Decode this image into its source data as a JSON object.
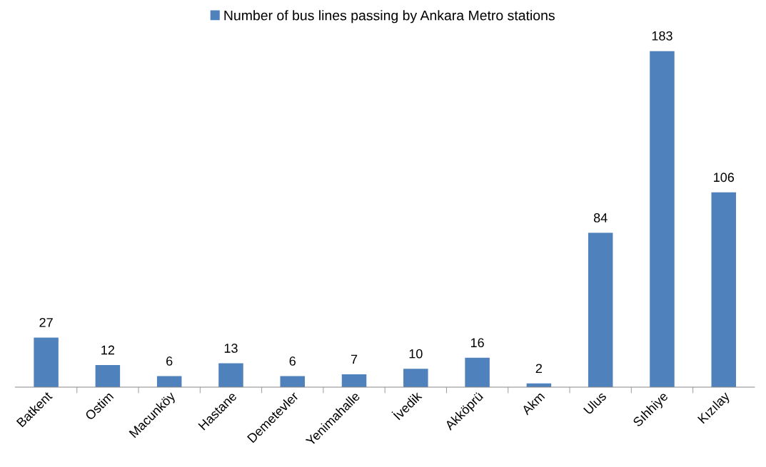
{
  "chart_data": {
    "type": "bar",
    "categories": [
      "Batkent",
      "Ostim",
      "Macunköy",
      "Hastane",
      "Demetevler",
      "Yenimahalle",
      "İvedik",
      "Akköprü",
      "Akm",
      "Ulus",
      "Sıhhiye",
      "Kızılay"
    ],
    "series": [
      {
        "name": "Number of bus lines passing by Ankara Metro stations",
        "color": "#4f81bd",
        "values": [
          27,
          12,
          6,
          13,
          6,
          7,
          10,
          16,
          2,
          84,
          183,
          106
        ]
      }
    ],
    "data_labels": true,
    "legend": "top",
    "grid": false
  }
}
